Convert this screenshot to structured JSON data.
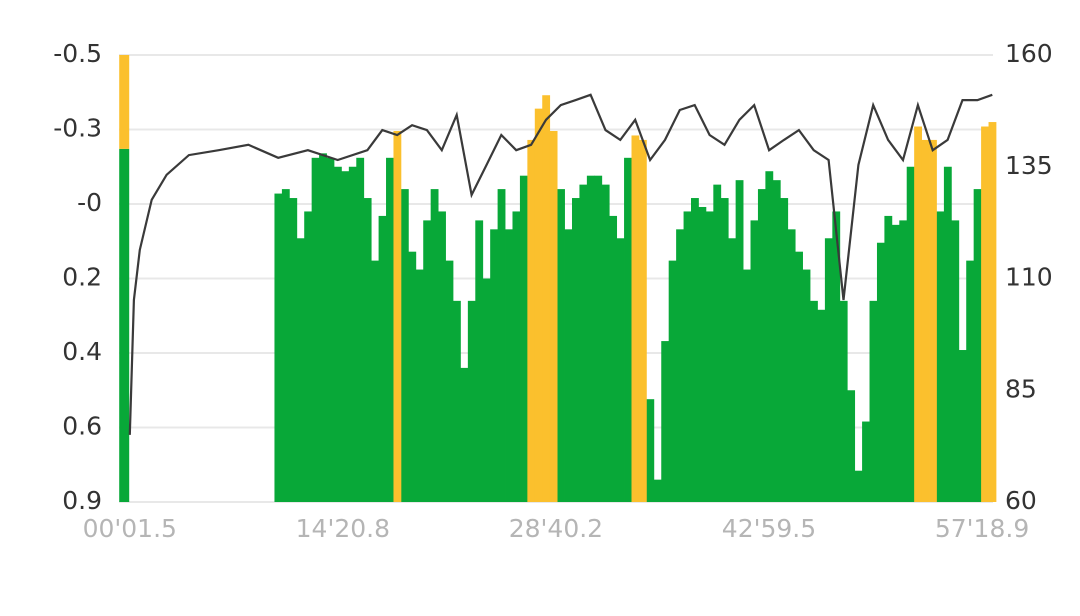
{
  "chart_data": {
    "type": "bar",
    "xlim": [
      -0.7,
      58.05
    ],
    "xticks": [
      {
        "value": 0.025,
        "label": "00'01.5"
      },
      {
        "value": 14.347,
        "label": "14'20.8"
      },
      {
        "value": 28.67,
        "label": "28'40.2"
      },
      {
        "value": 42.992,
        "label": "42'59.5"
      },
      {
        "value": 57.315,
        "label": "57'18.9"
      }
    ],
    "yticks": [
      -0.5,
      -0.3,
      {
        "value": 0,
        "label": "-0"
      },
      0.2,
      0.4,
      0.6,
      0.9
    ],
    "y2lim": [
      60,
      160
    ],
    "y2ticks": [
      160,
      135,
      110,
      85,
      60
    ],
    "grid": true,
    "indicator": {
      "x": -0.35,
      "segments": [
        {
          "color": "#08a838",
          "value": 79
        },
        {
          "color": "#fbc02d",
          "value": 21
        }
      ]
    },
    "x": [
      10,
      10.5,
      11,
      11.5,
      12,
      12.5,
      13,
      13.5,
      14,
      14.5,
      15,
      15.5,
      16,
      16.5,
      17,
      17.5,
      18,
      18.5,
      19,
      19.5,
      20,
      20.5,
      21,
      21.5,
      22,
      22.5,
      23,
      23.5,
      24,
      24.5,
      25,
      25.5,
      26,
      26.5,
      27,
      27.5,
      28,
      28.5,
      29,
      29.5,
      30,
      30.5,
      31,
      31.5,
      32,
      32.5,
      33,
      33.5,
      34,
      34.5,
      35,
      35.5,
      36,
      36.5,
      37,
      37.5,
      38,
      38.5,
      39,
      39.5,
      40,
      40.5,
      41,
      41.5,
      42,
      42.5,
      43,
      43.5,
      44,
      44.5,
      45,
      45.5,
      46,
      46.5,
      47,
      47.5,
      48,
      48.5,
      49,
      49.5,
      50,
      50.5,
      51,
      51.5,
      52,
      52.5,
      53,
      53.5,
      54,
      54.5,
      55,
      55.5,
      56,
      56.5,
      57,
      57.5,
      58
    ],
    "series": [
      {
        "color": "#08a838",
        "axis": "y2",
        "values": [
          129,
          130,
          128,
          119,
          125,
          137,
          138,
          137,
          135,
          134,
          135,
          137,
          128,
          114,
          124,
          137,
          null,
          130,
          116,
          112,
          123,
          130,
          125,
          114,
          105,
          90,
          105,
          123,
          110,
          121,
          130,
          121,
          125,
          133,
          null,
          null,
          null,
          null,
          130,
          121,
          128,
          131,
          133,
          133,
          131,
          124,
          119,
          137,
          null,
          null,
          83,
          65,
          96,
          114,
          121,
          125,
          128,
          126,
          125,
          131,
          128,
          119,
          132,
          112,
          123,
          130,
          134,
          132,
          128,
          121,
          116,
          112,
          105,
          103,
          119,
          125,
          105,
          85,
          67,
          78,
          105,
          118,
          124,
          122,
          123,
          135,
          null,
          null,
          null,
          125,
          135,
          123,
          94,
          114,
          130,
          null,
          null
        ]
      },
      {
        "color": "#fbc02d",
        "axis": "y2",
        "values": [
          null,
          null,
          null,
          null,
          null,
          null,
          null,
          null,
          null,
          null,
          null,
          null,
          null,
          null,
          null,
          null,
          143,
          null,
          null,
          null,
          null,
          null,
          null,
          null,
          null,
          null,
          null,
          null,
          null,
          null,
          null,
          null,
          null,
          null,
          141,
          148,
          151,
          143,
          null,
          null,
          null,
          null,
          null,
          null,
          null,
          null,
          null,
          null,
          142,
          141,
          null,
          null,
          null,
          null,
          null,
          null,
          null,
          null,
          null,
          null,
          null,
          null,
          null,
          null,
          null,
          null,
          null,
          null,
          null,
          null,
          null,
          null,
          null,
          null,
          null,
          null,
          null,
          null,
          null,
          null,
          null,
          null,
          null,
          null,
          null,
          null,
          144,
          141,
          141,
          null,
          null,
          null,
          null,
          null,
          null,
          144,
          145
        ]
      }
    ],
    "line": {
      "type": "line",
      "color": "#3a3a3a",
      "axis": "y2",
      "x": [
        0.025,
        0.3,
        0.7,
        1.5,
        2.5,
        4,
        6,
        8,
        10,
        12,
        14,
        16,
        17,
        18,
        19,
        20,
        21,
        22,
        23,
        24,
        25,
        26,
        27,
        28,
        29,
        30,
        31,
        32,
        33,
        34,
        35,
        36,
        37,
        38,
        39,
        40,
        41,
        42,
        43,
        44,
        45,
        46,
        47,
        48,
        49,
        50,
        51,
        52,
        53,
        54,
        55,
        56,
        57,
        58
      ],
      "values": [
        75,
        105.2,
        116.4,
        127.6,
        133.2,
        137.6,
        138.7,
        139.9,
        137,
        138.7,
        136.5,
        138.7,
        143.2,
        142.1,
        144.3,
        143.2,
        138.7,
        146.6,
        128.7,
        135.4,
        142.1,
        138.7,
        139.9,
        145.5,
        148.8,
        149.9,
        151.1,
        143.2,
        141,
        145.5,
        136.5,
        141,
        147.7,
        148.8,
        142.1,
        139.9,
        145.5,
        148.8,
        138.7,
        141,
        143.2,
        138.7,
        136.5,
        105.2,
        135.4,
        148.8,
        141,
        136.5,
        148.8,
        138.7,
        141,
        149.9,
        149.9,
        151.1
      ]
    }
  }
}
